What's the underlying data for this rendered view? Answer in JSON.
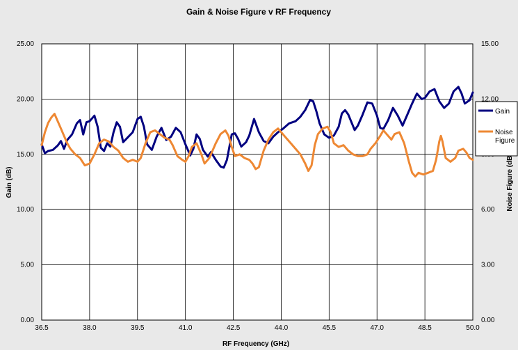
{
  "chart_data": {
    "type": "line",
    "title": "Gain & Noise Figure v RF Frequency",
    "xlabel": "RF Frequency (GHz)",
    "ylabel": "Gain (dB)",
    "y2label": "Noise Figure (dB)",
    "xlim": [
      36.5,
      50.0
    ],
    "ylim": [
      0,
      25
    ],
    "y2lim": [
      0,
      15
    ],
    "x_ticks": [
      "36.5",
      "38.0",
      "39.5",
      "41.0",
      "42.5",
      "44.0",
      "45.5",
      "47.0",
      "48.5",
      "50.0"
    ],
    "y_ticks": [
      "0.00",
      "5.00",
      "10.00",
      "15.00",
      "20.00",
      "25.00"
    ],
    "y2_ticks": [
      "0.00",
      "3.00",
      "6.00",
      "9.00",
      "12.00",
      "15.00"
    ],
    "grid": true,
    "legend_position": "right",
    "series": [
      {
        "name": "Gain",
        "axis": "left",
        "color": "#000080",
        "points": [
          [
            36.5,
            15.9
          ],
          [
            36.6,
            15.1
          ],
          [
            36.7,
            15.3
          ],
          [
            36.85,
            15.4
          ],
          [
            37.0,
            15.8
          ],
          [
            37.1,
            16.2
          ],
          [
            37.2,
            15.5
          ],
          [
            37.3,
            16.3
          ],
          [
            37.45,
            16.8
          ],
          [
            37.6,
            17.8
          ],
          [
            37.7,
            18.1
          ],
          [
            37.8,
            16.8
          ],
          [
            37.9,
            17.9
          ],
          [
            38.0,
            18.0
          ],
          [
            38.15,
            18.5
          ],
          [
            38.25,
            17.5
          ],
          [
            38.35,
            15.6
          ],
          [
            38.45,
            15.3
          ],
          [
            38.55,
            16.0
          ],
          [
            38.65,
            15.7
          ],
          [
            38.75,
            17.0
          ],
          [
            38.85,
            17.9
          ],
          [
            38.95,
            17.5
          ],
          [
            39.05,
            16.1
          ],
          [
            39.15,
            16.4
          ],
          [
            39.35,
            17.0
          ],
          [
            39.5,
            18.2
          ],
          [
            39.6,
            18.4
          ],
          [
            39.7,
            17.5
          ],
          [
            39.8,
            15.9
          ],
          [
            39.95,
            15.4
          ],
          [
            40.1,
            16.6
          ],
          [
            40.25,
            17.4
          ],
          [
            40.4,
            16.3
          ],
          [
            40.55,
            16.6
          ],
          [
            40.7,
            17.4
          ],
          [
            40.85,
            17.0
          ],
          [
            41.0,
            15.9
          ],
          [
            41.15,
            14.9
          ],
          [
            41.25,
            15.5
          ],
          [
            41.35,
            16.8
          ],
          [
            41.45,
            16.4
          ],
          [
            41.55,
            15.4
          ],
          [
            41.7,
            14.8
          ],
          [
            41.8,
            15.2
          ],
          [
            41.95,
            14.5
          ],
          [
            42.1,
            13.9
          ],
          [
            42.2,
            13.8
          ],
          [
            42.3,
            14.5
          ],
          [
            42.45,
            16.8
          ],
          [
            42.55,
            16.9
          ],
          [
            42.65,
            16.4
          ],
          [
            42.75,
            15.7
          ],
          [
            42.9,
            16.1
          ],
          [
            43.0,
            16.7
          ],
          [
            43.15,
            18.2
          ],
          [
            43.3,
            17.0
          ],
          [
            43.45,
            16.2
          ],
          [
            43.6,
            16.0
          ],
          [
            43.75,
            16.6
          ],
          [
            43.9,
            17.0
          ],
          [
            44.05,
            17.3
          ],
          [
            44.25,
            17.8
          ],
          [
            44.45,
            18.0
          ],
          [
            44.6,
            18.4
          ],
          [
            44.75,
            19.0
          ],
          [
            44.9,
            19.9
          ],
          [
            45.0,
            19.8
          ],
          [
            45.1,
            18.9
          ],
          [
            45.2,
            17.8
          ],
          [
            45.35,
            16.8
          ],
          [
            45.5,
            16.5
          ],
          [
            45.65,
            16.7
          ],
          [
            45.8,
            17.5
          ],
          [
            45.9,
            18.7
          ],
          [
            46.0,
            19.0
          ],
          [
            46.1,
            18.6
          ],
          [
            46.3,
            17.2
          ],
          [
            46.4,
            17.6
          ],
          [
            46.55,
            18.6
          ],
          [
            46.7,
            19.7
          ],
          [
            46.85,
            19.6
          ],
          [
            47.0,
            18.5
          ],
          [
            47.1,
            17.4
          ],
          [
            47.2,
            17.3
          ],
          [
            47.35,
            18.1
          ],
          [
            47.5,
            19.2
          ],
          [
            47.65,
            18.5
          ],
          [
            47.8,
            17.6
          ],
          [
            47.95,
            18.6
          ],
          [
            48.1,
            19.6
          ],
          [
            48.25,
            20.5
          ],
          [
            48.4,
            20.0
          ],
          [
            48.5,
            20.1
          ],
          [
            48.65,
            20.7
          ],
          [
            48.8,
            20.9
          ],
          [
            48.95,
            19.8
          ],
          [
            49.1,
            19.2
          ],
          [
            49.25,
            19.6
          ],
          [
            49.4,
            20.7
          ],
          [
            49.55,
            21.1
          ],
          [
            49.65,
            20.5
          ],
          [
            49.75,
            19.6
          ],
          [
            49.9,
            19.9
          ],
          [
            50.0,
            20.6
          ]
        ]
      },
      {
        "name": "Noise Figure",
        "axis": "right",
        "color": "#ee8833",
        "points": [
          [
            36.5,
            9.5
          ],
          [
            36.6,
            10.2
          ],
          [
            36.7,
            10.7
          ],
          [
            36.8,
            11.0
          ],
          [
            36.9,
            11.2
          ],
          [
            37.0,
            10.8
          ],
          [
            37.1,
            10.4
          ],
          [
            37.2,
            10.0
          ],
          [
            37.3,
            9.6
          ],
          [
            37.4,
            9.3
          ],
          [
            37.55,
            9.0
          ],
          [
            37.7,
            8.8
          ],
          [
            37.85,
            8.4
          ],
          [
            38.0,
            8.5
          ],
          [
            38.15,
            9.0
          ],
          [
            38.3,
            9.6
          ],
          [
            38.45,
            9.8
          ],
          [
            38.6,
            9.7
          ],
          [
            38.75,
            9.4
          ],
          [
            38.9,
            9.2
          ],
          [
            39.05,
            8.8
          ],
          [
            39.2,
            8.6
          ],
          [
            39.35,
            8.7
          ],
          [
            39.5,
            8.6
          ],
          [
            39.6,
            8.8
          ],
          [
            39.75,
            9.6
          ],
          [
            39.9,
            10.2
          ],
          [
            40.05,
            10.3
          ],
          [
            40.2,
            10.1
          ],
          [
            40.35,
            9.9
          ],
          [
            40.5,
            9.8
          ],
          [
            40.6,
            9.5
          ],
          [
            40.75,
            8.9
          ],
          [
            40.9,
            8.7
          ],
          [
            41.0,
            8.6
          ],
          [
            41.1,
            8.9
          ],
          [
            41.2,
            9.4
          ],
          [
            41.35,
            9.6
          ],
          [
            41.5,
            9.0
          ],
          [
            41.6,
            8.5
          ],
          [
            41.75,
            8.8
          ],
          [
            41.95,
            9.6
          ],
          [
            42.1,
            10.1
          ],
          [
            42.25,
            10.3
          ],
          [
            42.35,
            10.0
          ],
          [
            42.45,
            9.4
          ],
          [
            42.55,
            8.9
          ],
          [
            42.7,
            9.0
          ],
          [
            42.85,
            8.8
          ],
          [
            43.0,
            8.7
          ],
          [
            43.1,
            8.5
          ],
          [
            43.2,
            8.2
          ],
          [
            43.3,
            8.3
          ],
          [
            43.45,
            9.2
          ],
          [
            43.6,
            9.8
          ],
          [
            43.75,
            10.2
          ],
          [
            43.9,
            10.4
          ],
          [
            44.05,
            10.1
          ],
          [
            44.15,
            9.9
          ],
          [
            44.3,
            9.6
          ],
          [
            44.45,
            9.3
          ],
          [
            44.6,
            9.0
          ],
          [
            44.75,
            8.5
          ],
          [
            44.85,
            8.1
          ],
          [
            44.95,
            8.4
          ],
          [
            45.05,
            9.5
          ],
          [
            45.15,
            10.1
          ],
          [
            45.3,
            10.4
          ],
          [
            45.45,
            10.5
          ],
          [
            45.55,
            10.2
          ],
          [
            45.65,
            9.6
          ],
          [
            45.8,
            9.4
          ],
          [
            45.95,
            9.5
          ],
          [
            46.1,
            9.2
          ],
          [
            46.25,
            9.0
          ],
          [
            46.4,
            8.9
          ],
          [
            46.55,
            8.9
          ],
          [
            46.7,
            9.0
          ],
          [
            46.8,
            9.3
          ],
          [
            46.95,
            9.6
          ],
          [
            47.1,
            10.0
          ],
          [
            47.2,
            10.3
          ],
          [
            47.3,
            10.1
          ],
          [
            47.45,
            9.8
          ],
          [
            47.55,
            10.1
          ],
          [
            47.7,
            10.2
          ],
          [
            47.85,
            9.6
          ],
          [
            48.0,
            8.6
          ],
          [
            48.1,
            8.0
          ],
          [
            48.2,
            7.8
          ],
          [
            48.3,
            8.0
          ],
          [
            48.45,
            7.9
          ],
          [
            48.6,
            8.0
          ],
          [
            48.75,
            8.1
          ],
          [
            48.85,
            8.7
          ],
          [
            48.95,
            9.7
          ],
          [
            49.0,
            10.0
          ],
          [
            49.05,
            9.7
          ],
          [
            49.15,
            8.8
          ],
          [
            49.3,
            8.6
          ],
          [
            49.45,
            8.8
          ],
          [
            49.55,
            9.2
          ],
          [
            49.7,
            9.3
          ],
          [
            49.8,
            9.1
          ],
          [
            49.9,
            8.8
          ],
          [
            50.0,
            8.7
          ]
        ]
      }
    ]
  }
}
